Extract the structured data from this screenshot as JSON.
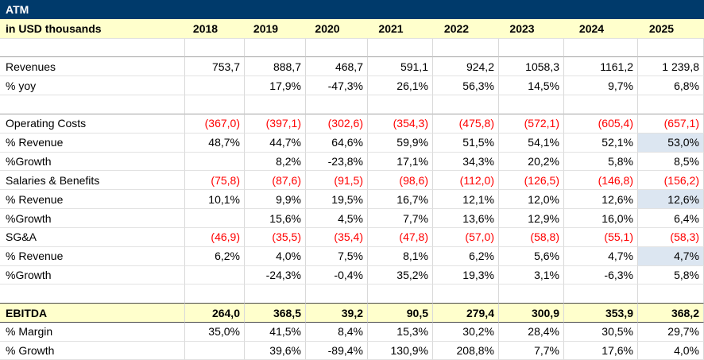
{
  "sheet": {
    "title": "ATM",
    "colors": {
      "header_navy": "#003A6B",
      "band_yellow": "#FFFFCC",
      "negative_red": "#FF0000",
      "highlight_blue": "#DCE6F1"
    },
    "columns": {
      "label": "in USD thousands",
      "years": [
        "2018",
        "2019",
        "2020",
        "2021",
        "2022",
        "2023",
        "2024",
        "2025"
      ]
    },
    "rows": [
      {
        "type": "spacer",
        "label": "",
        "values": [
          "",
          "",
          "",
          "",
          "",
          "",
          "",
          ""
        ]
      },
      {
        "type": "data",
        "label": "Revenues",
        "border_top": "section",
        "values": [
          "753,7",
          "888,7",
          "468,7",
          "591,1",
          "924,2",
          "1058,3",
          "1161,2",
          "1 239,8"
        ]
      },
      {
        "type": "data",
        "label": "% yoy",
        "values": [
          "",
          "17,9%",
          "-47,3%",
          "26,1%",
          "56,3%",
          "14,5%",
          "9,7%",
          "6,8%"
        ]
      },
      {
        "type": "spacer",
        "label": "",
        "values": [
          "",
          "",
          "",
          "",
          "",
          "",
          "",
          ""
        ]
      },
      {
        "type": "data",
        "label": "Operating Costs",
        "border_top": "section",
        "values": [
          "(367,0)",
          "(397,1)",
          "(302,6)",
          "(354,3)",
          "(475,8)",
          "(572,1)",
          "(605,4)",
          "(657,1)"
        ]
      },
      {
        "type": "data",
        "label": "% Revenue",
        "highlight_last": true,
        "values": [
          "48,7%",
          "44,7%",
          "64,6%",
          "59,9%",
          "51,5%",
          "54,1%",
          "52,1%",
          "53,0%"
        ]
      },
      {
        "type": "data",
        "label": "%Growth",
        "values": [
          "",
          "8,2%",
          "-23,8%",
          "17,1%",
          "34,3%",
          "20,2%",
          "5,8%",
          "8,5%"
        ]
      },
      {
        "type": "data",
        "label": "Salaries & Benefits",
        "values": [
          "(75,8)",
          "(87,6)",
          "(91,5)",
          "(98,6)",
          "(112,0)",
          "(126,5)",
          "(146,8)",
          "(156,2)"
        ]
      },
      {
        "type": "data",
        "label": "% Revenue",
        "highlight_last": true,
        "values": [
          "10,1%",
          "9,9%",
          "19,5%",
          "16,7%",
          "12,1%",
          "12,0%",
          "12,6%",
          "12,6%"
        ]
      },
      {
        "type": "data",
        "label": "%Growth",
        "values": [
          "",
          "15,6%",
          "4,5%",
          "7,7%",
          "13,6%",
          "12,9%",
          "16,0%",
          "6,4%"
        ]
      },
      {
        "type": "data",
        "label": "SG&A",
        "values": [
          "(46,9)",
          "(35,5)",
          "(35,4)",
          "(47,8)",
          "(57,0)",
          "(58,8)",
          "(55,1)",
          "(58,3)"
        ]
      },
      {
        "type": "data",
        "label": "% Revenue",
        "highlight_last": true,
        "values": [
          "6,2%",
          "4,0%",
          "7,5%",
          "8,1%",
          "6,2%",
          "5,6%",
          "4,7%",
          "4,7%"
        ]
      },
      {
        "type": "data",
        "label": "%Growth",
        "values": [
          "",
          "-24,3%",
          "-0,4%",
          "35,2%",
          "19,3%",
          "3,1%",
          "-6,3%",
          "5,8%"
        ]
      },
      {
        "type": "spacer",
        "label": "",
        "values": [
          "",
          "",
          "",
          "",
          "",
          "",
          "",
          ""
        ]
      },
      {
        "type": "total",
        "label": "EBITDA",
        "border_top": "dark",
        "values": [
          "264,0",
          "368,5",
          "39,2",
          "90,5",
          "279,4",
          "300,9",
          "353,9",
          "368,2"
        ]
      },
      {
        "type": "data",
        "label": "% Margin",
        "border_top": "dark",
        "values": [
          "35,0%",
          "41,5%",
          "8,4%",
          "15,3%",
          "30,2%",
          "28,4%",
          "30,5%",
          "29,7%"
        ]
      },
      {
        "type": "data",
        "label": "% Growth",
        "border_bottom": true,
        "values": [
          "",
          "39,6%",
          "-89,4%",
          "130,9%",
          "208,8%",
          "7,7%",
          "17,6%",
          "4,0%"
        ]
      }
    ]
  }
}
